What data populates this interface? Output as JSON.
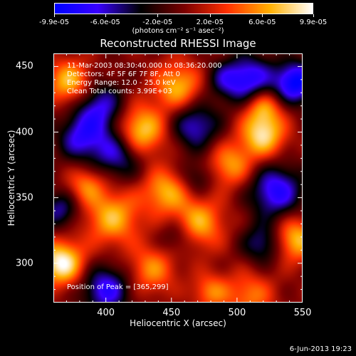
{
  "colorbar": {
    "tick_labels": [
      "-9.9e-05",
      "-6.0e-05",
      "-2.0e-05",
      "2.0e-05",
      "6.0e-05",
      "9.9e-05"
    ],
    "tick_values": [
      -9.9e-05,
      -6e-05,
      -2e-05,
      2e-05,
      6e-05,
      9.9e-05
    ],
    "units": "(photons cm⁻² s⁻¹ asec⁻²)",
    "range": [
      -9.9e-05,
      9.9e-05
    ],
    "colors": [
      "#0000ff",
      "#3a00ff",
      "#000000",
      "#7a0000",
      "#ff3000",
      "#ffb000",
      "#ffffff"
    ]
  },
  "chart_data": {
    "type": "heatmap",
    "title": "Reconstructed RHESSI Image",
    "xlabel": "Heliocentric X (arcsec)",
    "ylabel": "Heliocentric Y (arcsec)",
    "xlim": [
      360,
      550
    ],
    "ylim": [
      270,
      460
    ],
    "xticks": [
      400,
      450,
      500,
      550
    ],
    "yticks": [
      300,
      350,
      400,
      450
    ],
    "annotations": [
      "11-Mar-2003 08:30:40.000 to 08:36:20.000",
      "Detectors: 4F 5F 6F 7F 8F, Att 0",
      "Energy Range: 12.0 - 25.0 keV",
      "Clean     Total counts: 3.99E+03"
    ],
    "peak_label": "Position of Peak = [365,299]",
    "peak": [
      365,
      299
    ],
    "blobs": [
      {
        "x": 366,
        "y": 300,
        "v": 1.0,
        "r": 12
      },
      {
        "x": 372,
        "y": 438,
        "v": 0.75,
        "r": 12
      },
      {
        "x": 425,
        "y": 400,
        "v": 0.95,
        "r": 14
      },
      {
        "x": 455,
        "y": 435,
        "v": 0.7,
        "r": 13
      },
      {
        "x": 445,
        "y": 355,
        "v": 0.65,
        "r": 12
      },
      {
        "x": 405,
        "y": 335,
        "v": 0.7,
        "r": 15
      },
      {
        "x": 470,
        "y": 330,
        "v": 0.7,
        "r": 14
      },
      {
        "x": 495,
        "y": 375,
        "v": 0.6,
        "r": 12
      },
      {
        "x": 520,
        "y": 398,
        "v": 0.85,
        "r": 12
      },
      {
        "x": 520,
        "y": 420,
        "v": 0.6,
        "r": 10
      },
      {
        "x": 545,
        "y": 318,
        "v": 0.75,
        "r": 12
      },
      {
        "x": 435,
        "y": 295,
        "v": 0.55,
        "r": 13
      },
      {
        "x": 510,
        "y": 275,
        "v": 0.5,
        "r": 13
      },
      {
        "x": 480,
        "y": 278,
        "v": 0.5,
        "r": 10
      },
      {
        "x": 385,
        "y": 360,
        "v": 0.5,
        "r": 10
      },
      {
        "x": 545,
        "y": 438,
        "v": -1.0,
        "r": 11
      },
      {
        "x": 510,
        "y": 440,
        "v": -0.8,
        "r": 13
      },
      {
        "x": 395,
        "y": 418,
        "v": -0.7,
        "r": 14
      },
      {
        "x": 410,
        "y": 385,
        "v": -0.75,
        "r": 14
      },
      {
        "x": 380,
        "y": 395,
        "v": -0.6,
        "r": 12
      },
      {
        "x": 468,
        "y": 405,
        "v": -0.65,
        "r": 13
      },
      {
        "x": 530,
        "y": 355,
        "v": -0.8,
        "r": 14
      },
      {
        "x": 520,
        "y": 315,
        "v": -0.55,
        "r": 11
      },
      {
        "x": 400,
        "y": 280,
        "v": -0.75,
        "r": 13
      },
      {
        "x": 365,
        "y": 340,
        "v": -0.55,
        "r": 10
      },
      {
        "x": 455,
        "y": 320,
        "v": -0.4,
        "r": 10
      },
      {
        "x": 490,
        "y": 440,
        "v": -0.4,
        "r": 10
      },
      {
        "x": 470,
        "y": 365,
        "v": -0.35,
        "r": 9
      }
    ]
  },
  "footer": "6-Jun-2013 19:23"
}
